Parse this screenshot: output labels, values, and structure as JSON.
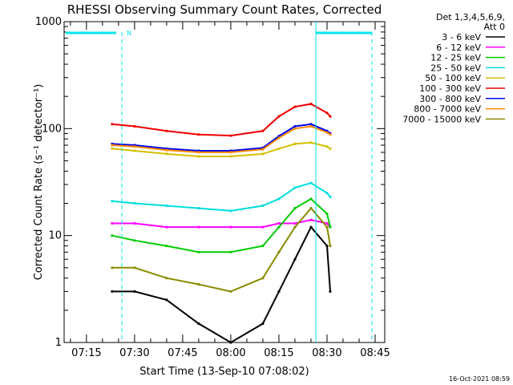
{
  "chart_data": {
    "type": "line",
    "title": "RHESSI Observing Summary Count Rates, Corrected",
    "xlabel": "Start Time (13-Sep-10 07:08:02)",
    "ylabel": "Corrected Count Rate (s⁻¹ detector⁻¹)",
    "yscale": "log",
    "ylim": [
      1,
      1000
    ],
    "x_ticks": [
      "07:15",
      "07:30",
      "07:45",
      "08:00",
      "08:15",
      "08:30",
      "08:45"
    ],
    "y_ticks": [
      "1",
      "10",
      "100",
      "1000"
    ],
    "legend_header": [
      "Det 1,3,4,5,6,9,",
      "Att 0"
    ],
    "legend_position": "right",
    "timestamp": "16-Oct-2021 08:59",
    "marker_label": "N",
    "x": [
      "07:23",
      "07:30",
      "07:40",
      "07:50",
      "08:00",
      "08:10",
      "08:15",
      "08:20",
      "08:25",
      "08:30",
      "08:31"
    ],
    "series": [
      {
        "name": "3 - 6 keV",
        "color": "#000000",
        "values": [
          3,
          3,
          2.5,
          1.5,
          1,
          1.5,
          3,
          6,
          12,
          8,
          3
        ]
      },
      {
        "name": "6 - 12 keV",
        "color": "#ff00ff",
        "values": [
          13,
          13,
          12,
          12,
          12,
          12,
          13,
          13,
          14,
          13,
          12
        ]
      },
      {
        "name": "12 - 25 keV",
        "color": "#00cc00",
        "values": [
          10,
          9,
          8,
          7,
          7,
          8,
          12,
          18,
          22,
          16,
          12
        ]
      },
      {
        "name": "25 - 50 keV",
        "color": "#00dddd",
        "values": [
          21,
          20,
          19,
          18,
          17,
          19,
          22,
          28,
          31,
          25,
          23
        ]
      },
      {
        "name": "50 - 100 keV",
        "color": "#d4c000",
        "values": [
          65,
          62,
          58,
          55,
          55,
          58,
          65,
          72,
          74,
          68,
          65
        ]
      },
      {
        "name": "100 - 300 keV",
        "color": "#ee0000",
        "values": [
          110,
          105,
          95,
          88,
          86,
          95,
          130,
          160,
          170,
          140,
          130
        ]
      },
      {
        "name": "300 - 800 keV",
        "color": "#0000ee",
        "values": [
          72,
          70,
          65,
          62,
          62,
          66,
          85,
          105,
          110,
          95,
          90
        ]
      },
      {
        "name": "800 - 7000 keV",
        "color": "#ff8c00",
        "values": [
          70,
          68,
          63,
          60,
          60,
          64,
          82,
          100,
          105,
          92,
          88
        ]
      },
      {
        "name": "7000 - 15000 keV",
        "color": "#8b8b00",
        "values": [
          5,
          5,
          4,
          3.5,
          3,
          4,
          7,
          12,
          18,
          12,
          8
        ]
      }
    ]
  }
}
